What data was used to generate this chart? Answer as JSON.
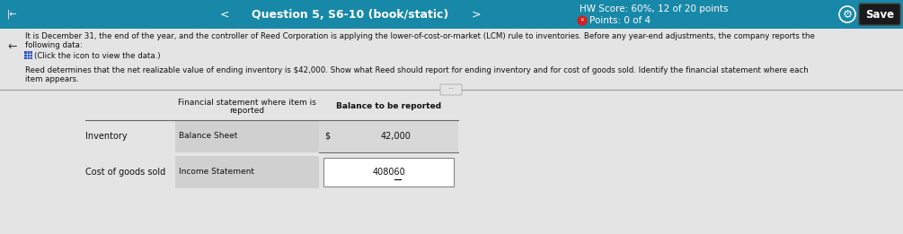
{
  "header_bg": "#1888a8",
  "body_bg": "#c8c8c8",
  "white_area_bg": "#e0e0e0",
  "title_text": "Question 5, S6-10 (book/static)",
  "hw_score": "HW Score: 60%, 12 of 20 points",
  "points": "Points: 0 of 4",
  "save_btn": "Save",
  "body_text_line1": "It is December 31, the end of the year, and the controller of Reed Corporation is applying the lower-of-cost-or-market (LCM) rule to inventories. Before any year-end adjustments, the company reports the",
  "body_text_line2": "following data:",
  "click_icon_text": "(Click the icon to view the data.)",
  "body_text2_line1": "Reed determines that the net realizable value of ending inventory is $42,000. Show what Reed should report for ending inventory and for cost of goods sold. Identify the financial statement where each",
  "body_text2_line2": "item appears.",
  "col1_header_line1": "Financial statement where item is",
  "col1_header_line2": "reported",
  "col2_header": "Balance to be reported",
  "row1_label": "Inventory",
  "row1_col1": "Balance Sheet",
  "row1_col2_prefix": "$",
  "row1_col2_value": "42,000",
  "row2_label": "Cost of goods sold",
  "row2_col1": "Income Statement",
  "row2_col2_value": "408060",
  "separator_color": "#aaaaaa",
  "table_row_bg": "#d0d0d0",
  "input_box_color": "#ffffff",
  "text_color": "#111111"
}
